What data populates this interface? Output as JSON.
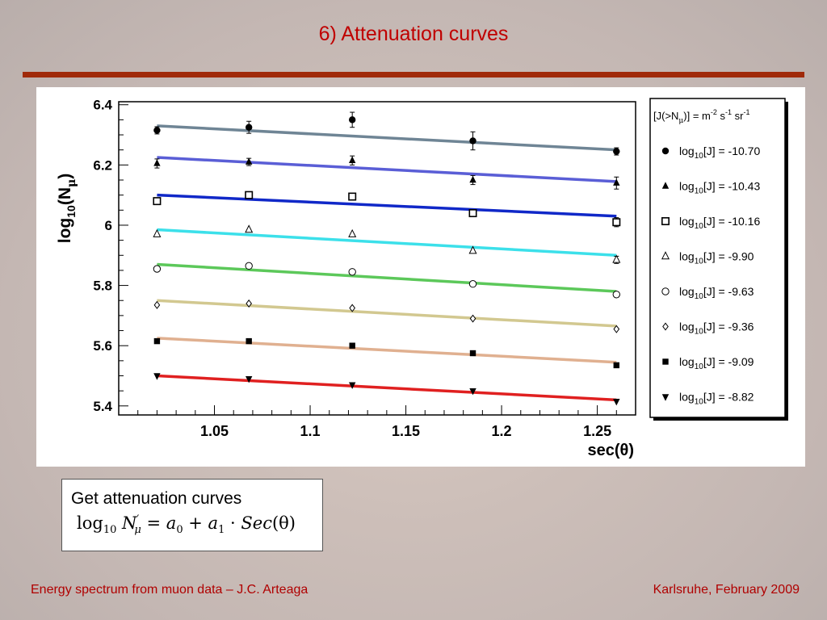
{
  "slide": {
    "title": "6) Attenuation curves",
    "footer_left": "Energy spectrum from muon data – J.C. Arteaga",
    "footer_right": "Karlsruhe,  February 2009",
    "title_color": "#c00000",
    "rule_color": "#a02a0a"
  },
  "formula_box": {
    "caption": "Get attenuation curves",
    "equation": {
      "log": "log",
      "log_sub": "10",
      "lhs": "N",
      "lhs_sup": "′",
      "lhs_sub": "μ",
      "equals": " = ",
      "a0": "a",
      "a0_sub": "0",
      "plus": " + ",
      "a1": "a",
      "a1_sub": "1",
      "dot": " · ",
      "sec": "Sec",
      "arg": "(θ)"
    }
  },
  "chart_data": {
    "type": "scatter",
    "xlabel": "sec(θ)",
    "ylabel_main": "log",
    "ylabel_sub": "10",
    "ylabel_rest": "(N",
    "ylabel_mu": "μ",
    "ylabel_close": ")",
    "xlim": [
      1.0,
      1.27
    ],
    "ylim": [
      5.37,
      6.41
    ],
    "xticks": [
      "1.05",
      "1.1",
      "1.15",
      "1.2",
      "1.25"
    ],
    "xtick_values": [
      1.05,
      1.1,
      1.15,
      1.2,
      1.25
    ],
    "yticks": [
      "5.4",
      "5.6",
      "5.8",
      "6",
      "6.2",
      "6.4"
    ],
    "ytick_values": [
      5.4,
      5.6,
      5.8,
      6.0,
      6.2,
      6.4
    ],
    "grid": false,
    "legend_title": "[J(>N_μ)] = m^-2 s^-1 sr^-1",
    "legend_title_parts": {
      "a": "[J(>N",
      "a_sub": "μ",
      "b": ")] = m",
      "b_sup": "-2",
      "c": " s",
      "c_sup": "-1",
      "d": " sr",
      "d_sup": "-1"
    },
    "legend_placement": "right",
    "x": [
      1.02,
      1.068,
      1.122,
      1.185,
      1.26
    ],
    "series": [
      {
        "legend_prefix": "log",
        "legend_sub": "10",
        "legend_value": "[J] = -10.70",
        "marker": "filled-circle",
        "line_color": "#6f8595",
        "y": [
          6.315,
          6.325,
          6.35,
          6.28,
          6.245
        ],
        "err": [
          0.012,
          0.02,
          0.025,
          0.03,
          0.012
        ],
        "fit": [
          6.33,
          6.25
        ]
      },
      {
        "legend_prefix": "log",
        "legend_sub": "10",
        "legend_value": "[J] = -10.43",
        "marker": "filled-triangle",
        "line_color": "#5a5ed6",
        "y": [
          6.205,
          6.21,
          6.215,
          6.15,
          6.14
        ],
        "err": [
          0.015,
          0.012,
          0.015,
          0.015,
          0.02
        ],
        "fit": [
          6.225,
          6.145
        ]
      },
      {
        "legend_prefix": "log",
        "legend_sub": "10",
        "legend_value": "[J] = -10.16",
        "marker": "open-square",
        "line_color": "#1028c8",
        "y": [
          6.08,
          6.1,
          6.095,
          6.04,
          6.01
        ],
        "err": [
          0,
          0,
          0,
          0,
          0.015
        ],
        "fit": [
          6.1,
          6.03
        ]
      },
      {
        "legend_prefix": "log",
        "legend_sub": "10",
        "legend_value": "[J] = -9.90",
        "marker": "open-triangle",
        "line_color": "#3ce0ea",
        "y": [
          5.97,
          5.985,
          5.97,
          5.915,
          5.885
        ],
        "err": [
          0,
          0,
          0,
          0,
          0.012
        ],
        "fit": [
          5.985,
          5.9
        ]
      },
      {
        "legend_prefix": "log",
        "legend_sub": "10",
        "legend_value": "[J] = -9.63",
        "marker": "open-circle",
        "line_color": "#5cc85a",
        "y": [
          5.855,
          5.865,
          5.845,
          5.805,
          5.77
        ],
        "err": [
          0,
          0,
          0,
          0,
          0
        ],
        "fit": [
          5.87,
          5.78
        ]
      },
      {
        "legend_prefix": "log",
        "legend_sub": "10",
        "legend_value": "[J] = -9.36",
        "marker": "open-diamond",
        "line_color": "#d2c890",
        "y": [
          5.735,
          5.74,
          5.725,
          5.69,
          5.655
        ],
        "err": [
          0,
          0,
          0,
          0,
          0
        ],
        "fit": [
          5.75,
          5.665
        ]
      },
      {
        "legend_prefix": "log",
        "legend_sub": "10",
        "legend_value": "[J] = -9.09",
        "marker": "filled-square",
        "line_color": "#e0b090",
        "y": [
          5.615,
          5.615,
          5.6,
          5.575,
          5.535
        ],
        "err": [
          0,
          0,
          0,
          0,
          0
        ],
        "fit": [
          5.625,
          5.545
        ]
      },
      {
        "legend_prefix": "log",
        "legend_sub": "10",
        "legend_value": "[J] = -8.82",
        "marker": "filled-triangle-down",
        "line_color": "#e02020",
        "y": [
          5.5,
          5.49,
          5.47,
          5.45,
          5.415
        ],
        "err": [
          0,
          0,
          0,
          0,
          0
        ],
        "fit": [
          5.5,
          5.42
        ]
      }
    ]
  }
}
